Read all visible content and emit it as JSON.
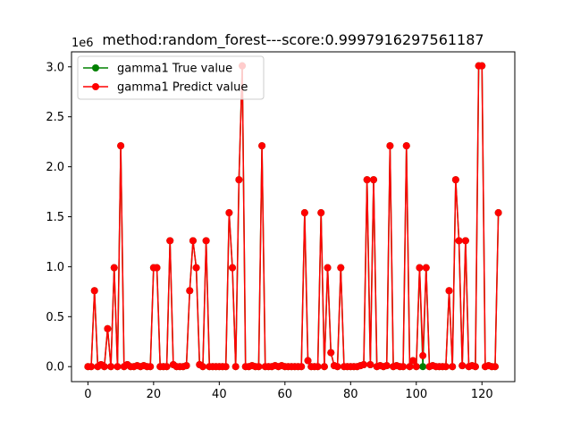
{
  "chart_data": {
    "type": "line",
    "title": "method:random_forest---score:0.9997916297561187",
    "xlabel": "",
    "ylabel": "",
    "y_offset_label": "1e6",
    "xlim": [
      -5,
      130
    ],
    "ylim": [
      -150000,
      3150000
    ],
    "x_ticks": [
      0,
      20,
      40,
      60,
      80,
      100,
      120
    ],
    "x_tick_labels": [
      "0",
      "20",
      "40",
      "60",
      "80",
      "100",
      "120"
    ],
    "y_ticks": [
      0,
      500000,
      1000000,
      1500000,
      2000000,
      2500000,
      3000000
    ],
    "y_tick_labels": [
      "0.0",
      "0.5",
      "1.0",
      "1.5",
      "2.0",
      "2.5",
      "3.0"
    ],
    "grid": false,
    "legend_position": "top-left",
    "series": [
      {
        "name": "gamma1 True value",
        "color": "#008000",
        "values": [
          0,
          0,
          760000,
          0,
          20000,
          0,
          380000,
          0,
          990000,
          0,
          2210000,
          0,
          20000,
          0,
          0,
          10000,
          0,
          10000,
          0,
          0,
          990000,
          990000,
          0,
          0,
          0,
          1260000,
          20000,
          0,
          0,
          0,
          10000,
          760000,
          1260000,
          990000,
          20000,
          0,
          1260000,
          0,
          0,
          0,
          0,
          0,
          0,
          1540000,
          990000,
          0,
          1870000,
          3010000,
          0,
          0,
          10000,
          0,
          0,
          2210000,
          0,
          0,
          0,
          10000,
          0,
          10000,
          0,
          0,
          0,
          0,
          0,
          0,
          1540000,
          60000,
          0,
          0,
          0,
          1540000,
          0,
          990000,
          140000,
          10000,
          0,
          990000,
          0,
          0,
          0,
          0,
          0,
          10000,
          20000,
          1870000,
          20000,
          1870000,
          0,
          10000,
          0,
          10000,
          2210000,
          0,
          10000,
          0,
          0,
          2210000,
          0,
          60000,
          0,
          990000,
          0,
          990000,
          0,
          10000,
          0,
          0,
          0,
          0,
          760000,
          0,
          1870000,
          1260000,
          10000,
          1260000,
          0,
          10000,
          0,
          3010000,
          3010000,
          0,
          10000,
          0,
          0,
          1540000
        ]
      },
      {
        "name": "gamma1 Predict value",
        "color": "#ff0000",
        "values": [
          0,
          0,
          760000,
          0,
          20000,
          0,
          380000,
          0,
          990000,
          0,
          2210000,
          0,
          20000,
          0,
          0,
          10000,
          0,
          10000,
          0,
          0,
          990000,
          990000,
          0,
          0,
          0,
          1260000,
          20000,
          0,
          0,
          0,
          10000,
          760000,
          1260000,
          990000,
          20000,
          0,
          1260000,
          0,
          0,
          0,
          0,
          0,
          0,
          1540000,
          990000,
          0,
          1870000,
          3010000,
          0,
          0,
          10000,
          0,
          0,
          2210000,
          0,
          0,
          0,
          10000,
          0,
          10000,
          0,
          0,
          0,
          0,
          0,
          0,
          1540000,
          60000,
          0,
          0,
          0,
          1540000,
          0,
          990000,
          140000,
          10000,
          0,
          990000,
          0,
          0,
          0,
          0,
          0,
          10000,
          20000,
          1870000,
          20000,
          1870000,
          0,
          10000,
          0,
          10000,
          2210000,
          0,
          10000,
          0,
          0,
          2210000,
          0,
          60000,
          0,
          990000,
          110000,
          990000,
          0,
          10000,
          0,
          0,
          0,
          0,
          760000,
          0,
          1870000,
          1260000,
          10000,
          1260000,
          0,
          10000,
          0,
          3010000,
          3010000,
          0,
          10000,
          0,
          0,
          1540000
        ]
      }
    ]
  }
}
